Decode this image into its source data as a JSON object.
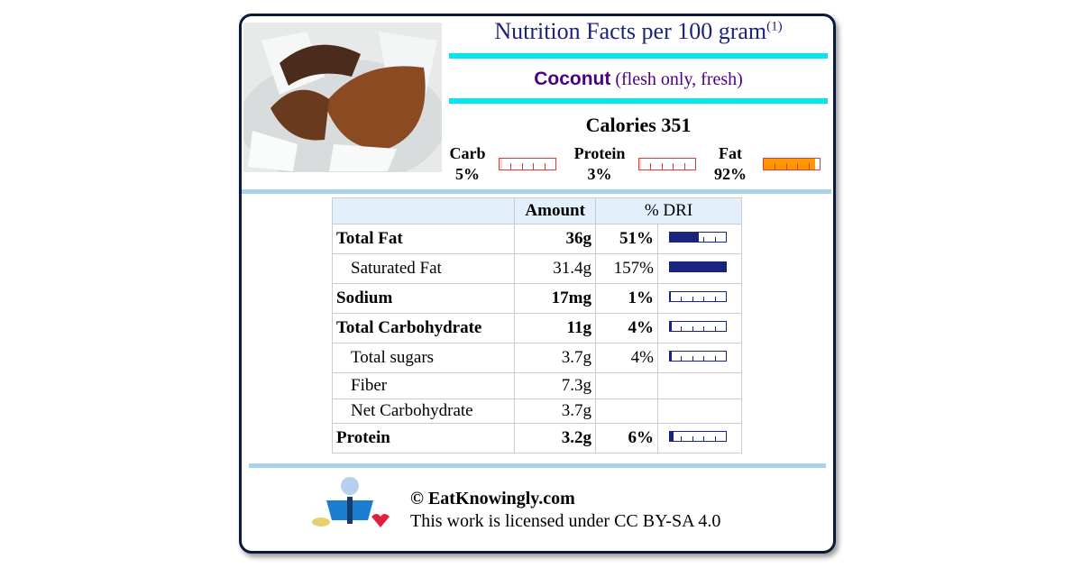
{
  "header": {
    "title": "Nutrition Facts per 100 gram",
    "footnote_mark": "(1)",
    "food_name": "Coconut",
    "food_detail": "(flesh only, fresh)"
  },
  "calories": {
    "label": "Calories",
    "value": 351
  },
  "macros": [
    {
      "name": "Carb",
      "percent": {
        "value": 5,
        "label": "5%"
      }
    },
    {
      "name": "Protein",
      "percent": {
        "value": 3,
        "label": "3%"
      }
    },
    {
      "name": "Fat",
      "percent": {
        "value": 92,
        "label": "92%"
      }
    }
  ],
  "table": {
    "headers": [
      "Amount",
      "% DRI"
    ],
    "rows": [
      {
        "name": "Total Fat",
        "amount": "36g",
        "dri": {
          "value": 51,
          "label": "51%"
        },
        "bold": true
      },
      {
        "name": "Saturated Fat",
        "amount": "31.4g",
        "dri": {
          "value": 157,
          "label": "157%"
        },
        "bold": false
      },
      {
        "name": "Sodium",
        "amount": "17mg",
        "dri": {
          "value": 1,
          "label": "1%"
        },
        "bold": true
      },
      {
        "name": "Total Carbohydrate",
        "amount": "11g",
        "dri": {
          "value": 4,
          "label": "4%"
        },
        "bold": true
      },
      {
        "name": "Total sugars",
        "amount": "3.7g",
        "dri": {
          "value": 4,
          "label": "4%"
        },
        "bold": false
      },
      {
        "name": "Fiber",
        "amount": "7.3g",
        "bold": false
      },
      {
        "name": "Net Carbohydrate",
        "amount": "3.7g",
        "bold": false
      },
      {
        "name": "Protein",
        "amount": "3.2g",
        "dri": {
          "value": 6,
          "label": "6%"
        },
        "bold": true
      }
    ]
  },
  "footer": {
    "copyright": "© EatKnowingly.com",
    "license": "This work is licensed under CC BY-SA 4.0"
  }
}
